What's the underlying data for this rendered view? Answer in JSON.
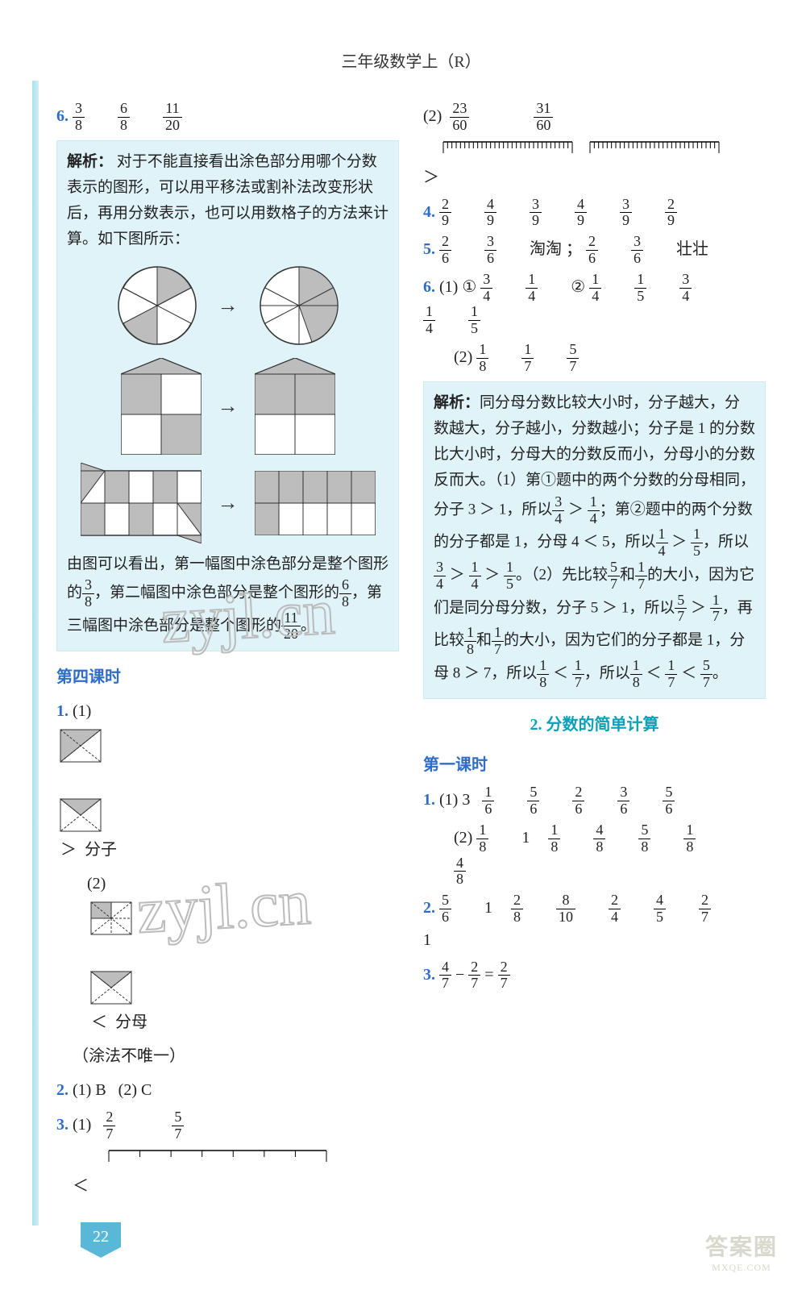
{
  "header": "三年级数学上（R）",
  "page_number": "22",
  "watermark": "zyjl.cn",
  "stamp": {
    "big": "答案圈",
    "small": "MXQE.COM"
  },
  "colors": {
    "blue": "#2f6dc9",
    "cyan": "#0aa0b8",
    "analysis_bg": "#dff3f9",
    "analysis_border": "#cdeaf0",
    "page_tab": "#5bb7d8",
    "edge1": "#a9e0ef",
    "edge2": "#d3eef6",
    "shape_fill": "#bdbdbd",
    "shape_stroke": "#333",
    "watermark_stroke": "#bbb"
  },
  "left": {
    "q6": {
      "label": "6.",
      "fracs": [
        [
          3,
          8
        ],
        [
          6,
          8
        ],
        [
          11,
          20
        ]
      ],
      "analysis_label": "解析：",
      "analysis_intro": "对于不能直接看出涂色部分用哪个分数表示的图形，可以用平移法或割补法改变形状后，再用分数表示，也可以用数格子的方法来计算。如下图所示：",
      "analysis_outro_parts": [
        "由图可以看出，第一幅图中涂色部分是整个图形的",
        "，第二幅图中涂色部分是整个图形的",
        "，第三幅图中涂色部分是整个图形的",
        "。"
      ],
      "fracs_out": [
        [
          3,
          8
        ],
        [
          6,
          8
        ],
        [
          11,
          20
        ]
      ]
    },
    "lesson4": {
      "title": "第四课时",
      "q1": {
        "label": "1.",
        "p1": {
          "label": "(1)",
          "comp": "＞",
          "tag": "分子"
        },
        "p2": {
          "label": "(2)",
          "comp": "＜",
          "tag": "分母"
        },
        "note": "（涂法不唯一）"
      },
      "q2": {
        "label": "2.",
        "a": "(1) B",
        "b": "(2) C"
      },
      "q3": {
        "label": "3.",
        "p1": {
          "label": "(1)",
          "fracs": [
            [
              2,
              7
            ],
            [
              5,
              7
            ]
          ],
          "ruler": {
            "ticks": 8
          },
          "result": "＜"
        }
      }
    }
  },
  "right": {
    "p2": {
      "label": "(2)",
      "fracs": [
        [
          23,
          60
        ],
        [
          31,
          60
        ]
      ],
      "ruler1": {
        "ticks": 31
      },
      "ruler2": {
        "ticks": 31
      },
      "result": "＞"
    },
    "q4": {
      "label": "4.",
      "fracs": [
        [
          2,
          9
        ],
        [
          4,
          9
        ],
        [
          3,
          9
        ],
        [
          4,
          9
        ],
        [
          3,
          9
        ],
        [
          2,
          9
        ]
      ]
    },
    "q5": {
      "label": "5.",
      "segs": [
        [
          2,
          6
        ],
        [
          3,
          6
        ]
      ],
      "name1": "淘淘",
      "segs2": [
        [
          2,
          6
        ],
        [
          3,
          6
        ]
      ],
      "name2": "壮壮",
      "sep": "；"
    },
    "q6": {
      "label": "6.",
      "p1": {
        "label": "(1)",
        "c1": "①",
        "c1_fracs": [
          [
            3,
            4
          ],
          [
            1,
            4
          ]
        ],
        "c2": "②",
        "c2_fracs": [
          [
            1,
            4
          ],
          [
            1,
            5
          ],
          [
            3,
            4
          ],
          [
            1,
            4
          ],
          [
            1,
            5
          ]
        ]
      },
      "p2": {
        "label": "(2)",
        "fracs": [
          [
            1,
            8
          ],
          [
            1,
            7
          ],
          [
            5,
            7
          ]
        ]
      },
      "analysis_label": "解析：",
      "analysis_text1": "同分母分数比较大小时，分子越大，分数越大，分子越小，分数越小；分子是 1 的分数比大小时，分母大的分数反而小，分母小的分数反而大。（1）第①题中的两个分数的分母相同，分子 3 ＞ 1，所以",
      "analysis_text2": "；第②题中的两个分数的分子都是 1，分母 4 ＜ 5，所以",
      "analysis_text3": "，所以",
      "analysis_text4": "。（2）先比较",
      "analysis_text5": "和",
      "analysis_text6": "的大小，因为它们是同分母分数，分子 5 ＞ 1，所以",
      "analysis_text7": "，再比较",
      "analysis_text8": "和",
      "analysis_text9": "的大小，因为它们的分子都是 1，分母 8 ＞ 7，所以",
      "analysis_text10": "，所以",
      "analysis_text11": "。",
      "a_fracs": {
        "a": [
          [
            3,
            4
          ],
          [
            1,
            4
          ]
        ],
        "b": [
          [
            1,
            4
          ],
          [
            1,
            5
          ]
        ],
        "c": [
          [
            3,
            4
          ],
          [
            1,
            4
          ],
          [
            1,
            5
          ]
        ],
        "d": [
          [
            5,
            7
          ],
          [
            1,
            7
          ]
        ],
        "e": [
          [
            5,
            7
          ],
          [
            1,
            7
          ]
        ],
        "f": [
          [
            1,
            8
          ],
          [
            1,
            7
          ]
        ],
        "g": [
          [
            1,
            8
          ],
          [
            1,
            7
          ]
        ],
        "h": [
          [
            1,
            8
          ],
          [
            1,
            7
          ],
          [
            5,
            7
          ]
        ]
      }
    },
    "section2": {
      "title": "2. 分数的简单计算",
      "lesson1": {
        "title": "第一课时",
        "q1": {
          "label": "1.",
          "p1": {
            "label": "(1)",
            "first_int": "3",
            "fracs": [
              [
                1,
                6
              ],
              [
                5,
                6
              ],
              [
                2,
                6
              ],
              [
                3,
                6
              ],
              [
                5,
                6
              ]
            ]
          },
          "p2": {
            "label": "(2)",
            "items": [
              [
                1,
                8
              ],
              "1",
              [
                1,
                8
              ],
              [
                4,
                8
              ],
              [
                5,
                8
              ],
              [
                1,
                8
              ],
              [
                4,
                8
              ]
            ]
          }
        },
        "q2": {
          "label": "2.",
          "items": [
            [
              5,
              6
            ],
            "1",
            [
              2,
              8
            ],
            [
              8,
              10
            ],
            [
              2,
              4
            ],
            [
              4,
              5
            ],
            [
              2,
              7
            ],
            "1"
          ]
        },
        "q3": {
          "label": "3.",
          "lhs": [
            [
              4,
              7
            ],
            [
              2,
              7
            ]
          ],
          "op": "−",
          "eq": "=",
          "rhs": [
            2,
            7
          ]
        }
      }
    }
  }
}
